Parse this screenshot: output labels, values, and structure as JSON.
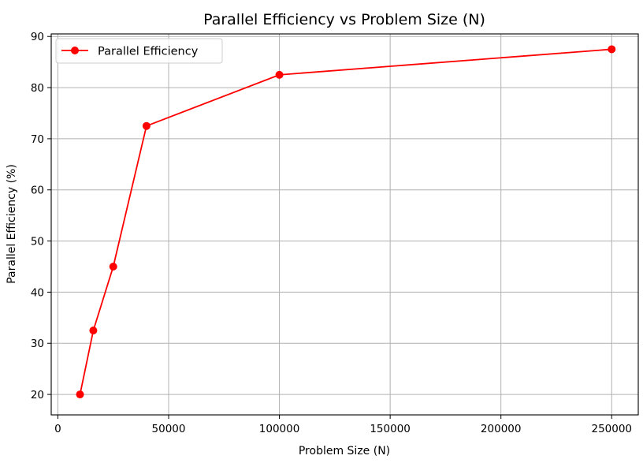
{
  "chart_data": {
    "type": "line",
    "title": "Parallel Efficiency vs Problem Size (N)",
    "xlabel": "Problem Size (N)",
    "ylabel": "Parallel Efficiency (%)",
    "xlim": [
      -3000,
      262000
    ],
    "ylim": [
      16,
      90.5
    ],
    "xticks": [
      0,
      50000,
      100000,
      150000,
      200000,
      250000
    ],
    "xtick_labels": [
      "0",
      "50000",
      "100000",
      "150000",
      "200000",
      "250000"
    ],
    "yticks": [
      20,
      30,
      40,
      50,
      60,
      70,
      80,
      90
    ],
    "ytick_labels": [
      "20",
      "30",
      "40",
      "50",
      "60",
      "70",
      "80",
      "90"
    ],
    "grid": true,
    "legend_position": "top-left",
    "series": [
      {
        "name": "Parallel Efficiency",
        "color": "#ff0000",
        "marker": "circle",
        "x": [
          10000,
          16000,
          25000,
          40000,
          100000,
          250000
        ],
        "y": [
          20,
          32.5,
          45,
          72.5,
          82.5,
          87.5
        ]
      }
    ]
  }
}
